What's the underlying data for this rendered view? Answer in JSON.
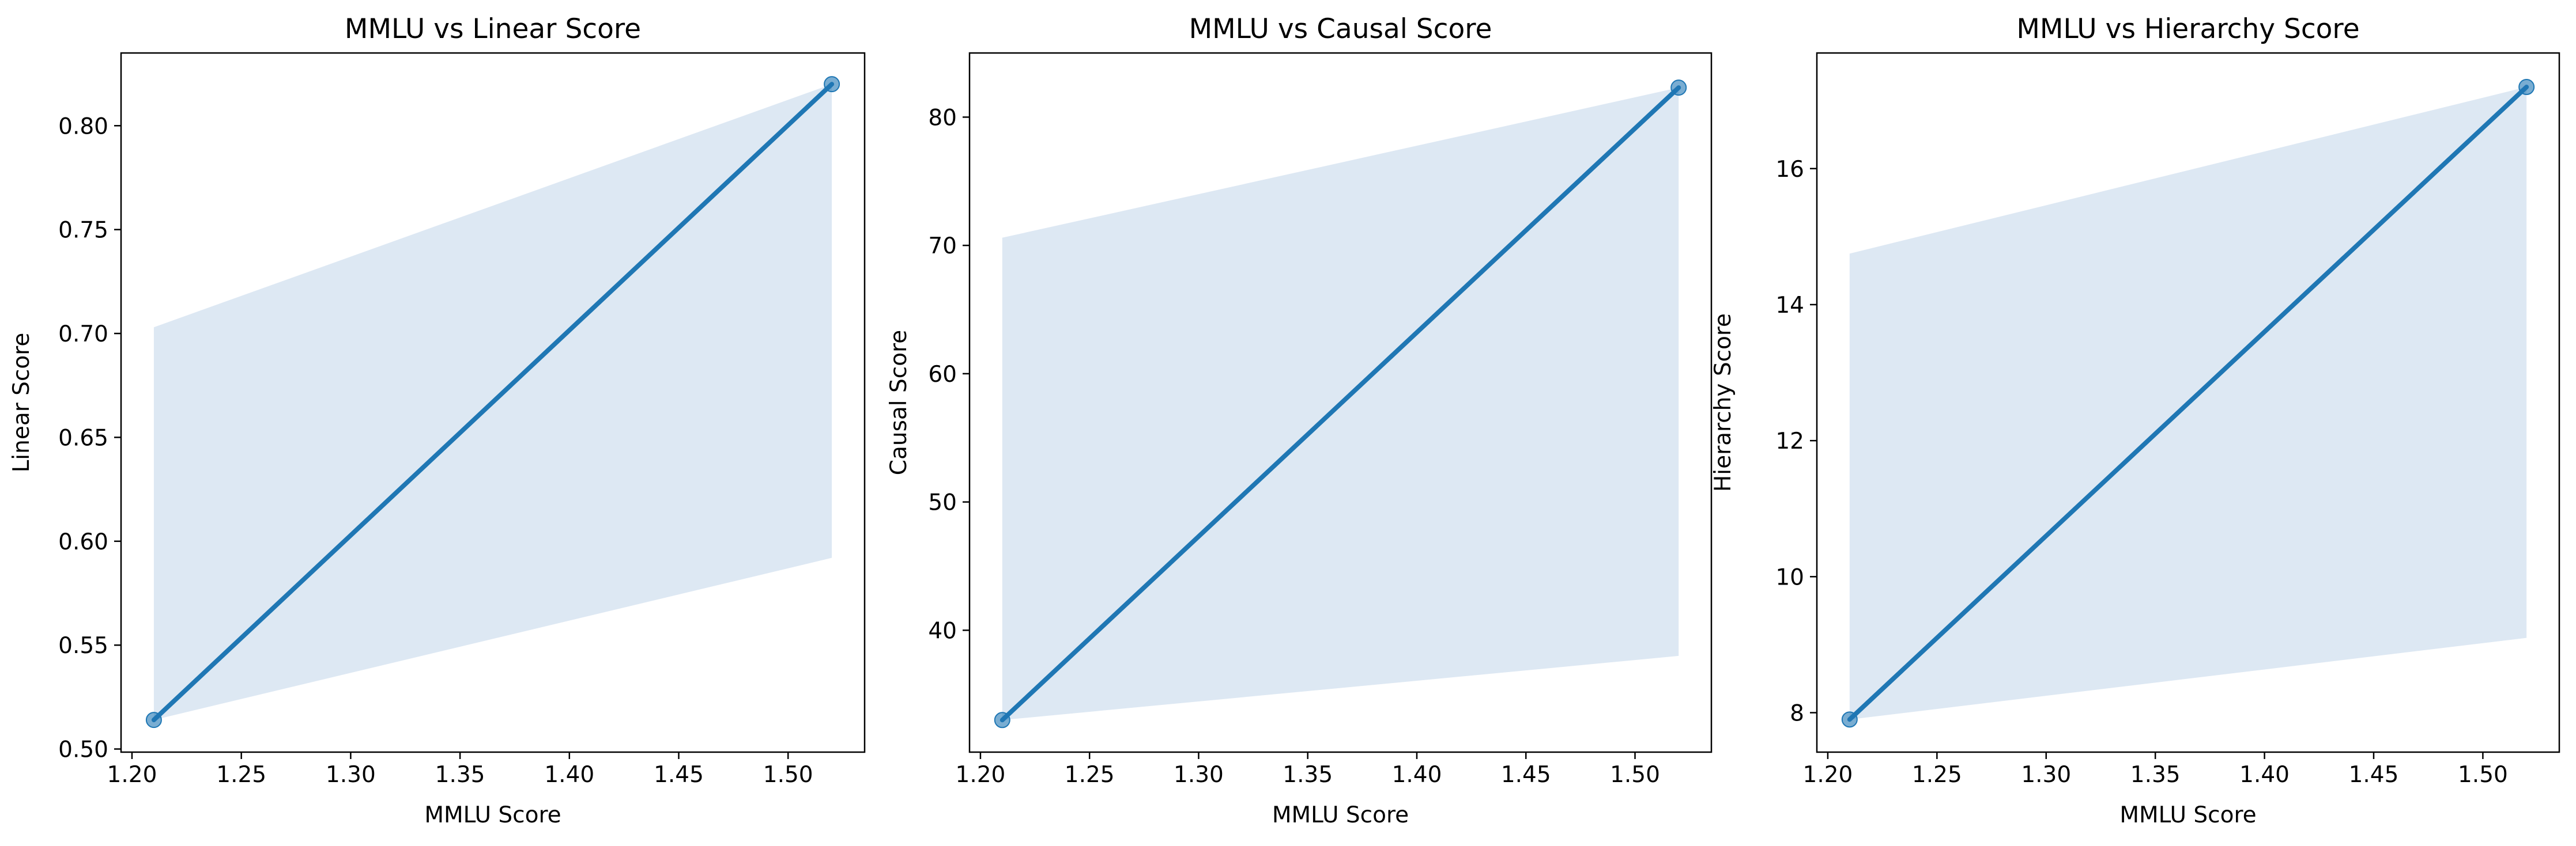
{
  "colors": {
    "line": "#1f77b4",
    "band": "#dde8f3",
    "point": "#1f77b4"
  },
  "chart_data": [
    {
      "type": "scatter",
      "title": "MMLU vs Linear Score",
      "xlabel": "MMLU Score",
      "ylabel": "Linear Score",
      "xlim": [
        1.195,
        1.535
      ],
      "ylim": [
        0.4985,
        0.835
      ],
      "xticks": [
        "1.20",
        "1.25",
        "1.30",
        "1.35",
        "1.40",
        "1.45",
        "1.50"
      ],
      "yticks": [
        "0.50",
        "0.55",
        "0.60",
        "0.65",
        "0.70",
        "0.75",
        "0.80"
      ],
      "points": [
        {
          "x": 1.21,
          "y": 0.514
        },
        {
          "x": 1.52,
          "y": 0.82
        }
      ],
      "regression": [
        {
          "x": 1.21,
          "y": 0.514
        },
        {
          "x": 1.52,
          "y": 0.82
        }
      ],
      "ci_band": {
        "lower": [
          [
            1.21,
            0.514
          ],
          [
            1.52,
            0.592
          ]
        ],
        "upper": [
          [
            1.21,
            0.703
          ],
          [
            1.52,
            0.82
          ]
        ]
      },
      "grid": false
    },
    {
      "type": "scatter",
      "title": "MMLU vs Causal Score",
      "xlabel": "MMLU Score",
      "ylabel": "Causal Score",
      "xlim": [
        1.195,
        1.535
      ],
      "ylim": [
        30.5,
        85.0
      ],
      "xticks": [
        "1.20",
        "1.25",
        "1.30",
        "1.35",
        "1.40",
        "1.45",
        "1.50"
      ],
      "yticks": [
        "40",
        "50",
        "60",
        "70",
        "80"
      ],
      "points": [
        {
          "x": 1.21,
          "y": 33.0
        },
        {
          "x": 1.52,
          "y": 82.3
        }
      ],
      "regression": [
        {
          "x": 1.21,
          "y": 33.0
        },
        {
          "x": 1.52,
          "y": 82.3
        }
      ],
      "ci_band": {
        "lower": [
          [
            1.21,
            33.0
          ],
          [
            1.52,
            38.0
          ]
        ],
        "upper": [
          [
            1.21,
            70.6
          ],
          [
            1.52,
            82.3
          ]
        ]
      },
      "grid": false
    },
    {
      "type": "scatter",
      "title": "MMLU vs Hierarchy Score",
      "xlabel": "MMLU Score",
      "ylabel": "Hierarchy Score",
      "xlim": [
        1.195,
        1.535
      ],
      "ylim": [
        7.42,
        17.7
      ],
      "xticks": [
        "1.20",
        "1.25",
        "1.30",
        "1.35",
        "1.40",
        "1.45",
        "1.50"
      ],
      "yticks": [
        "8",
        "10",
        "12",
        "14",
        "16"
      ],
      "points": [
        {
          "x": 1.21,
          "y": 7.9
        },
        {
          "x": 1.52,
          "y": 17.2
        }
      ],
      "regression": [
        {
          "x": 1.21,
          "y": 7.9
        },
        {
          "x": 1.52,
          "y": 17.2
        }
      ],
      "ci_band": {
        "lower": [
          [
            1.21,
            7.9
          ],
          [
            1.52,
            9.1
          ]
        ],
        "upper": [
          [
            1.21,
            14.75
          ],
          [
            1.52,
            17.2
          ]
        ]
      },
      "grid": false
    }
  ]
}
